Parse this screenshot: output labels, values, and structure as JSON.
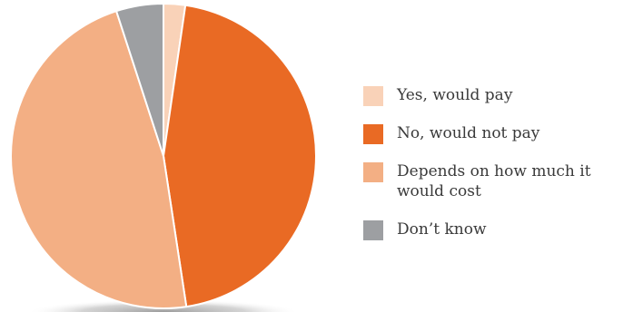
{
  "chart_data": {
    "type": "pie",
    "title": "",
    "slices": [
      {
        "label": "Yes, would pay",
        "value": 2.3,
        "color": "#F9D2B8"
      },
      {
        "label": "No, would not pay",
        "value": 45.3,
        "color": "#E96A24"
      },
      {
        "label": "Depends on how much it would cost",
        "value": 47.4,
        "color": "#F3AF84"
      },
      {
        "label": "Don’t know",
        "value": 5.0,
        "color": "#9D9FA2"
      }
    ],
    "legend_position": "right",
    "start_angle": "12 o'clock",
    "direction": "clockwise"
  },
  "legend": {
    "items": [
      {
        "label": "Yes, would pay",
        "color": "#F9D2B8"
      },
      {
        "label": "No, would not pay",
        "color": "#E96A24"
      },
      {
        "label": "Depends on how much it would cost",
        "color": "#F3AF84"
      },
      {
        "label": "Don’t know",
        "color": "#9D9FA2"
      }
    ]
  }
}
